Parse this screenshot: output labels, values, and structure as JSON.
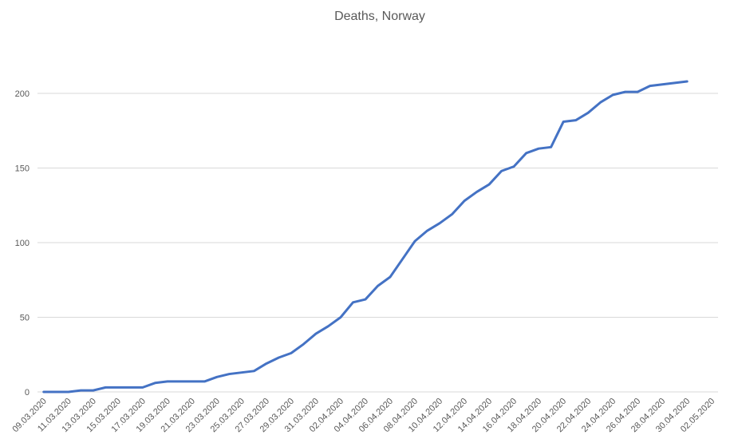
{
  "chart_data": {
    "type": "line",
    "title": "Deaths, Norway",
    "categories": [
      "09.03.2020",
      null,
      "11.03.2020",
      null,
      "13.03.2020",
      null,
      "15.03.2020",
      null,
      "17.03.2020",
      null,
      "19.03.2020",
      null,
      "21.03.2020",
      null,
      "23.03.2020",
      null,
      "25.03.2020",
      null,
      "27.03.2020",
      null,
      "29.03.2020",
      null,
      "31.03.2020",
      null,
      "02.04.2020",
      null,
      "04.04.2020",
      null,
      "06.04.2020",
      null,
      "08.04.2020",
      null,
      "10.04.2020",
      null,
      "12.04.2020",
      null,
      "14.04.2020",
      null,
      "16.04.2020",
      null,
      "18.04.2020",
      null,
      "20.04.2020",
      null,
      "22.04.2020",
      null,
      "24.04.2020",
      null,
      "26.04.2020",
      null,
      "28.04.2020",
      null,
      "30.04.2020",
      null,
      "02.05.2020"
    ],
    "series": [
      {
        "name": "Deaths",
        "color": "#4472c4",
        "values": [
          0,
          0,
          0,
          1,
          1,
          3,
          3,
          3,
          3,
          6,
          7,
          7,
          7,
          7,
          10,
          12,
          13,
          14,
          19,
          23,
          26,
          32,
          39,
          44,
          50,
          60,
          62,
          71,
          77,
          89,
          101,
          108,
          113,
          119,
          128,
          134,
          139,
          148,
          151,
          160,
          163,
          164,
          181,
          182,
          187,
          194,
          199,
          201,
          201,
          205,
          206,
          207,
          208,
          null,
          null
        ]
      }
    ],
    "ylim": [
      0,
      250
    ],
    "yticks": [
      0,
      50,
      100,
      150,
      200
    ],
    "grid": true
  }
}
